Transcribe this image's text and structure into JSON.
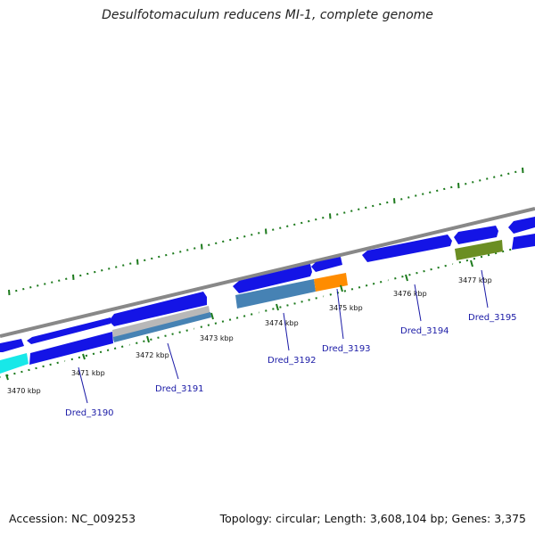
{
  "title": "Desulfotomaculum reducens MI-1, complete genome",
  "footer": {
    "accession": "Accession: NC_009253",
    "topology": "Topology: circular; Length: 3,608,104 bp; Genes: 3,375"
  },
  "colors": {
    "backbone": "#888888",
    "gene": "#1414e6",
    "major_tick": "#1d7a1d",
    "minor_tick": "#1d7a1d",
    "label": "#1a1aa6"
  },
  "tick_labels": [
    "3470 kbp",
    "3471 kbp",
    "3472 kbp",
    "3473 kbp",
    "3474 kbp",
    "3475 kbp",
    "3476 kbp",
    "3477 kbp"
  ],
  "gene_labels": [
    "Dred_3190",
    "Dred_3191",
    "Dred_3192",
    "Dred_3193",
    "Dred_3194",
    "Dred_3195"
  ]
}
